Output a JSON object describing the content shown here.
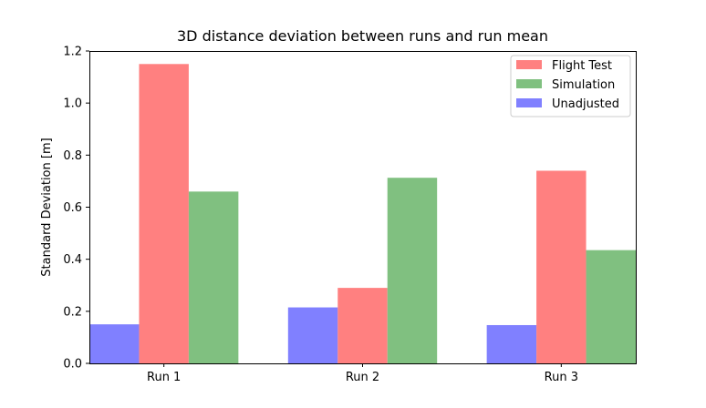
{
  "chart_data": {
    "type": "bar",
    "title": "3D distance deviation between runs and run mean",
    "xlabel": "",
    "ylabel": "Standard Deviation [m]",
    "categories": [
      "Run 1",
      "Run 2",
      "Run 3"
    ],
    "series": [
      {
        "name": "Unadjusted",
        "color": "#8080ff",
        "values": [
          0.15,
          0.215,
          0.147
        ]
      },
      {
        "name": "Flight Test",
        "color": "#ff8080",
        "values": [
          1.15,
          0.29,
          0.74
        ]
      },
      {
        "name": "Simulation",
        "color": "#80c080",
        "values": [
          0.66,
          0.713,
          0.435
        ]
      }
    ],
    "legend_order": [
      "Flight Test",
      "Simulation",
      "Unadjusted"
    ],
    "ylim": [
      0,
      1.2
    ],
    "yticks": [
      0.0,
      0.2,
      0.4,
      0.6,
      0.8,
      1.0,
      1.2
    ],
    "ytick_labels": [
      "0.0",
      "0.2",
      "0.4",
      "0.6",
      "0.8",
      "1.0",
      "1.2"
    ],
    "grid": false,
    "legend_position": "top-right"
  }
}
